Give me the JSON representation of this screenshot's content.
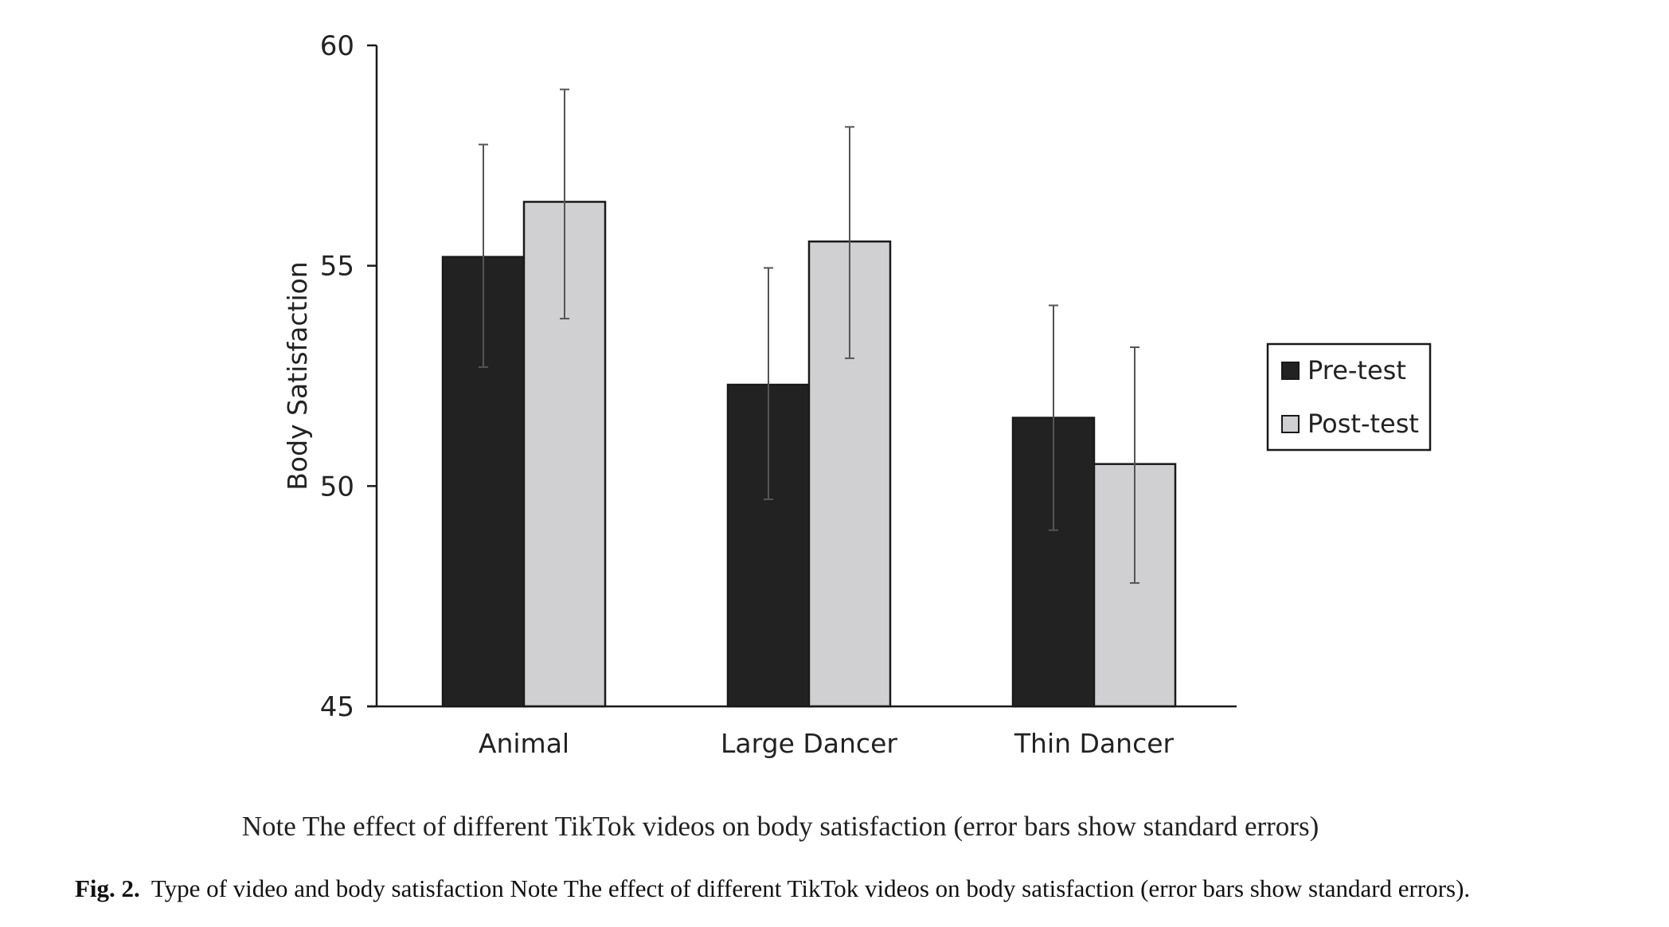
{
  "chart_data": {
    "type": "bar",
    "title": "",
    "xlabel": "",
    "ylabel": "Body Satisfaction",
    "ylim": [
      45,
      60
    ],
    "yticks": [
      45,
      50,
      55,
      60
    ],
    "grid": false,
    "legend_position": "right",
    "categories": [
      "Animal",
      "Large Dancer",
      "Thin Dancer"
    ],
    "series": [
      {
        "name": "Pre-test",
        "color": "#222222",
        "values": [
          55.2,
          52.3,
          51.55
        ],
        "error_low": [
          52.7,
          49.7,
          49.0
        ],
        "error_high": [
          57.75,
          54.95,
          54.1
        ]
      },
      {
        "name": "Post-test",
        "color": "#d0cfd1",
        "values": [
          56.45,
          55.55,
          50.5
        ],
        "error_low": [
          53.8,
          52.9,
          47.8
        ],
        "error_high": [
          59.0,
          58.15,
          53.15
        ]
      }
    ]
  },
  "note": "Note The effect of different TikTok videos on body satisfaction (error bars show standard errors)",
  "caption": {
    "label": "Fig. 2.",
    "text": "Type of video and body satisfaction Note The effect of different TikTok videos on body satisfaction (error bars show standard errors)."
  }
}
